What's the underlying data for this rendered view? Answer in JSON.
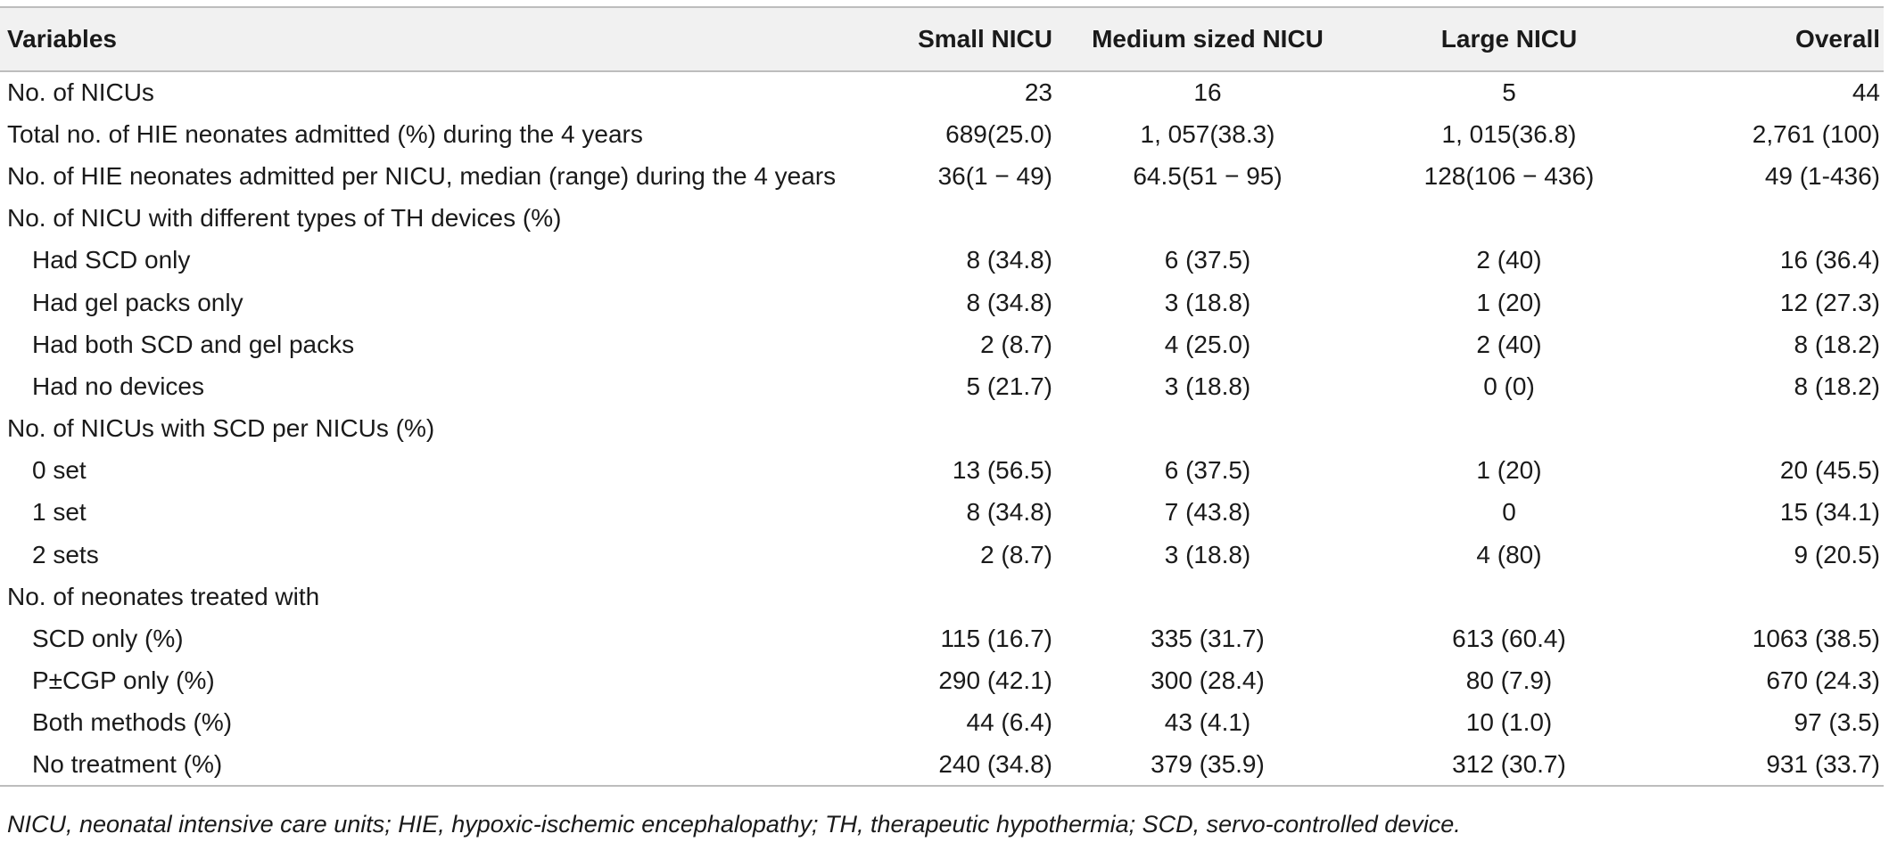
{
  "table": {
    "headers": {
      "variables": "Variables",
      "small": "Small NICU",
      "medium": "Medium sized NICU",
      "large": "Large NICU",
      "overall": "Overall"
    },
    "rows": [
      {
        "label": "No. of NICUs",
        "small": "23",
        "medium": "16",
        "large": "5",
        "overall": "44"
      },
      {
        "label": "Total no. of HIE neonates admitted (%) during the 4 years",
        "small": "689(25.0)",
        "medium": "1, 057(38.3)",
        "large": "1, 015(36.8)",
        "overall": "2,761 (100)"
      },
      {
        "label": "No. of HIE neonates admitted per NICU, median (range) during the 4 years",
        "small": "36(1 − 49)",
        "medium": "64.5(51 − 95)",
        "large": "128(106 − 436)",
        "overall": "49 (1-436)"
      },
      {
        "label": "No. of NICU with different types of TH devices (%)",
        "small": "",
        "medium": "",
        "large": "",
        "overall": ""
      },
      {
        "label": "Had SCD only",
        "small": "8 (34.8)",
        "medium": "6 (37.5)",
        "large": "2 (40)",
        "overall": "16 (36.4)"
      },
      {
        "label": "Had gel packs only",
        "small": "8 (34.8)",
        "medium": "3 (18.8)",
        "large": "1 (20)",
        "overall": "12 (27.3)"
      },
      {
        "label": "Had both SCD and gel packs",
        "small": "2 (8.7)",
        "medium": "4 (25.0)",
        "large": "2 (40)",
        "overall": "8 (18.2)"
      },
      {
        "label": "Had no devices",
        "small": "5 (21.7)",
        "medium": "3 (18.8)",
        "large": "0 (0)",
        "overall": "8 (18.2)"
      },
      {
        "label": "No. of NICUs with SCD per NICUs (%)",
        "small": "",
        "medium": "",
        "large": "",
        "overall": ""
      },
      {
        "label": "0 set",
        "small": "13 (56.5)",
        "medium": "6 (37.5)",
        "large": "1 (20)",
        "overall": "20 (45.5)"
      },
      {
        "label": "1 set",
        "small": "8 (34.8)",
        "medium": "7 (43.8)",
        "large": "0",
        "overall": "15 (34.1)"
      },
      {
        "label": "2 sets",
        "small": "2 (8.7)",
        "medium": "3 (18.8)",
        "large": "4 (80)",
        "overall": "9 (20.5)"
      },
      {
        "label": "No. of neonates treated with",
        "small": "",
        "medium": "",
        "large": "",
        "overall": ""
      },
      {
        "label": "SCD only (%)",
        "small": "115 (16.7)",
        "medium": "335 (31.7)",
        "large": "613 (60.4)",
        "overall": "1063 (38.5)"
      },
      {
        "label": "P±CGP only (%)",
        "small": "290 (42.1)",
        "medium": "300 (28.4)",
        "large": "80 (7.9)",
        "overall": "670 (24.3)"
      },
      {
        "label": "Both methods (%)",
        "small": "44 (6.4)",
        "medium": "43 (4.1)",
        "large": "10 (1.0)",
        "overall": "97 (3.5)"
      },
      {
        "label": "No treatment (%)",
        "small": "240 (34.8)",
        "medium": "379 (35.9)",
        "large": "312 (30.7)",
        "overall": "931 (33.7)"
      }
    ]
  },
  "footnote": "NICU, neonatal intensive care units; HIE, hypoxic-ischemic encephalopathy; TH, therapeutic hypothermia; SCD, servo-controlled device."
}
